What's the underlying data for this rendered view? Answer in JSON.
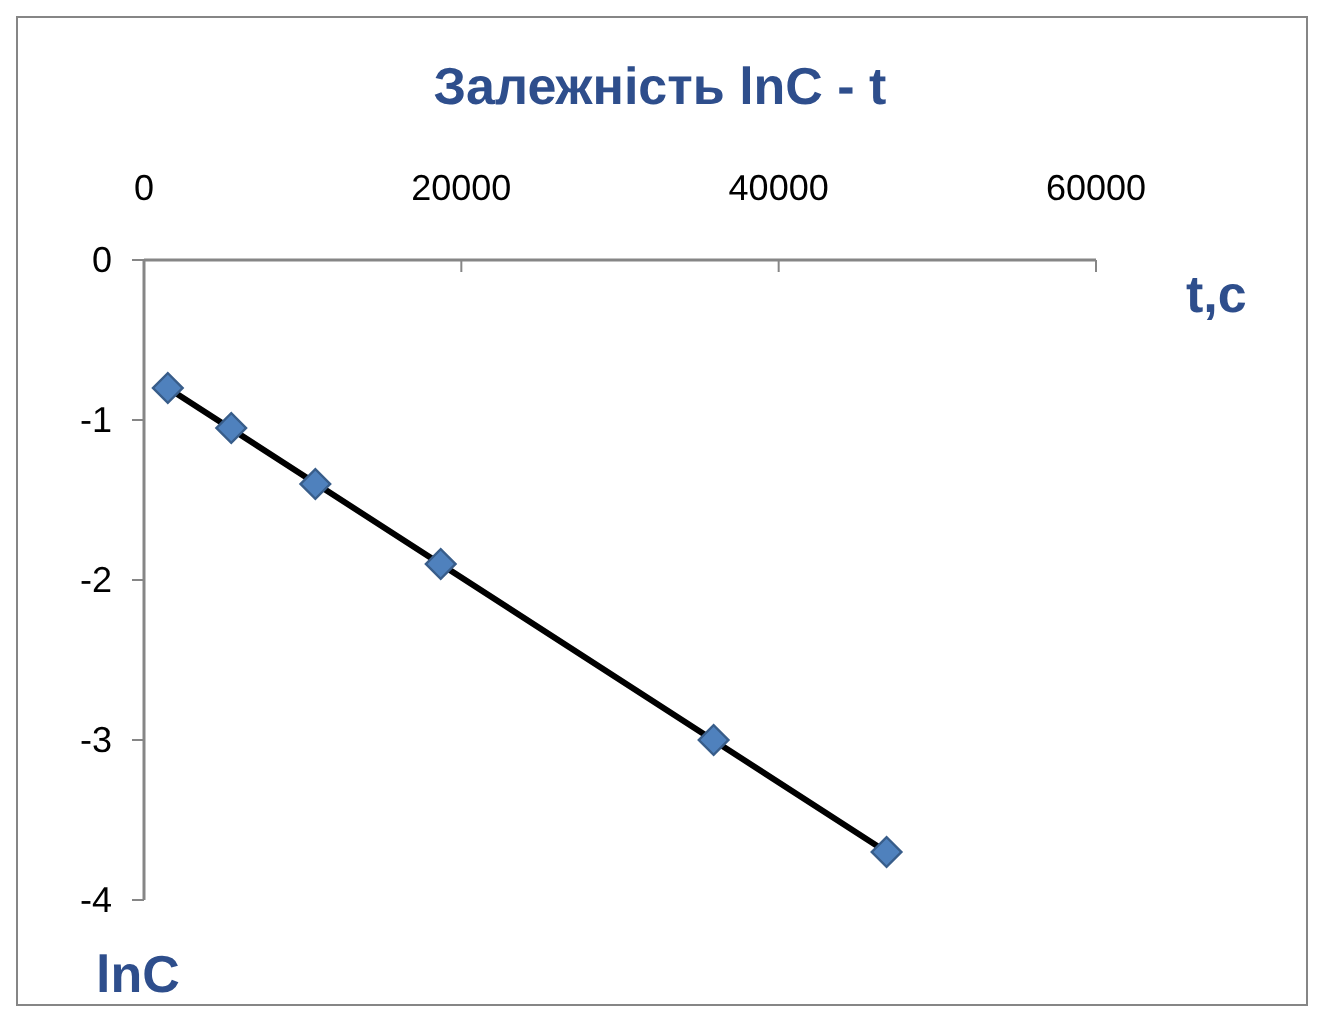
{
  "chart_data": {
    "type": "scatter",
    "title": "Залежність lnC - t",
    "xlabel": "t,c",
    "ylabel": "lnC",
    "xlim": [
      0,
      60000
    ],
    "xticks": [
      0,
      20000,
      40000,
      60000
    ],
    "ylim": [
      -4,
      0
    ],
    "yticks": [
      -4,
      -3,
      -2,
      -1,
      0
    ],
    "grid": false,
    "marker": "diamond",
    "series": [
      {
        "color": "#4f81bd",
        "x": [
          1500,
          5500,
          10800,
          18700,
          35900,
          46800
        ],
        "values": [
          -0.8,
          -1.05,
          -1.4,
          -1.9,
          -3.0,
          -3.7
        ]
      },
      {
        "type": "line",
        "color": "#000000",
        "line_style": "solid",
        "marker": "none",
        "x": [
          1500,
          46800
        ],
        "values": [
          -0.8,
          -3.7
        ]
      }
    ]
  }
}
